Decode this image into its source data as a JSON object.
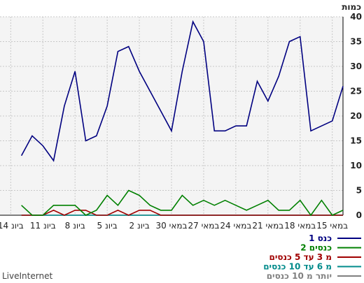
{
  "chart_data": {
    "type": "line",
    "ylabel": "כמות",
    "ylim": [
      0,
      40
    ],
    "yticks": [
      0,
      5,
      10,
      15,
      20,
      25,
      30,
      35,
      40
    ],
    "x_tick_labels": [
      "14 ביונ",
      "11 ביונ",
      "8 ביונ",
      "5 ביונ",
      "2 ביונ",
      "30 במאי",
      "27 במאי",
      "24 במאי",
      "21 במאי",
      "18 במאי",
      "15 במאי"
    ],
    "x_tick_index": [
      31,
      28,
      25,
      22,
      19,
      16,
      13,
      10,
      7,
      4,
      1
    ],
    "grid": true,
    "legend_position": "bottom",
    "x": [
      0,
      1,
      2,
      3,
      4,
      5,
      6,
      7,
      8,
      9,
      10,
      11,
      12,
      13,
      14,
      15,
      16,
      17,
      18,
      19,
      20,
      21,
      22,
      23,
      24,
      25,
      26,
      27,
      28,
      29,
      30,
      31,
      32
    ],
    "series": [
      {
        "name": "כנס 1",
        "color": "#000080",
        "values": [
          26,
          19,
          18,
          17,
          36,
          35,
          28,
          23,
          27,
          18,
          18,
          17,
          17,
          35,
          39,
          29,
          17,
          21,
          25,
          29,
          34,
          33,
          22,
          16,
          15,
          29,
          22,
          11,
          14,
          16,
          12,
          null,
          null
        ]
      },
      {
        "name": "2 כנסים",
        "color": "#008000",
        "values": [
          1,
          0,
          3,
          0,
          3,
          1,
          1,
          3,
          2,
          1,
          2,
          3,
          2,
          3,
          2,
          4,
          1,
          1,
          2,
          4,
          5,
          2,
          4,
          1,
          0,
          2,
          2,
          2,
          0,
          0,
          2,
          null,
          null
        ]
      },
      {
        "name": "מ 3 עד 5 כנסים",
        "color": "#a00000",
        "values": [
          0,
          0,
          0,
          0,
          0,
          0,
          0,
          0,
          0,
          0,
          0,
          0,
          0,
          0,
          0,
          0,
          0,
          0,
          1,
          1,
          0,
          1,
          0,
          0,
          1,
          1,
          0,
          1,
          0,
          0,
          0,
          null,
          null
        ]
      },
      {
        "name": "מ 6 עד 10 כנסים",
        "color": "#008b8b",
        "values": [
          0,
          0,
          0,
          0,
          0,
          0,
          0,
          0,
          0,
          0,
          0,
          0,
          0,
          0,
          0,
          0,
          0,
          0,
          0,
          0,
          0,
          0,
          0,
          0,
          0,
          0,
          0,
          0,
          0,
          0,
          0,
          null,
          null
        ]
      },
      {
        "name": "יותר מ 10 כנסים",
        "color": "#808080",
        "values": [
          0,
          0,
          0,
          0,
          0,
          0,
          0,
          0,
          0,
          0,
          0,
          0,
          0,
          0,
          0,
          0,
          0,
          0,
          0,
          0,
          0,
          0,
          0,
          0,
          0,
          0,
          0,
          0,
          0,
          0,
          0,
          null,
          null
        ]
      }
    ]
  },
  "footer": {
    "brand": "LiveInternet"
  },
  "colors": {
    "plot_background": "#f4f4f4",
    "grid": "#c8c8c8",
    "axis": "#000000"
  }
}
